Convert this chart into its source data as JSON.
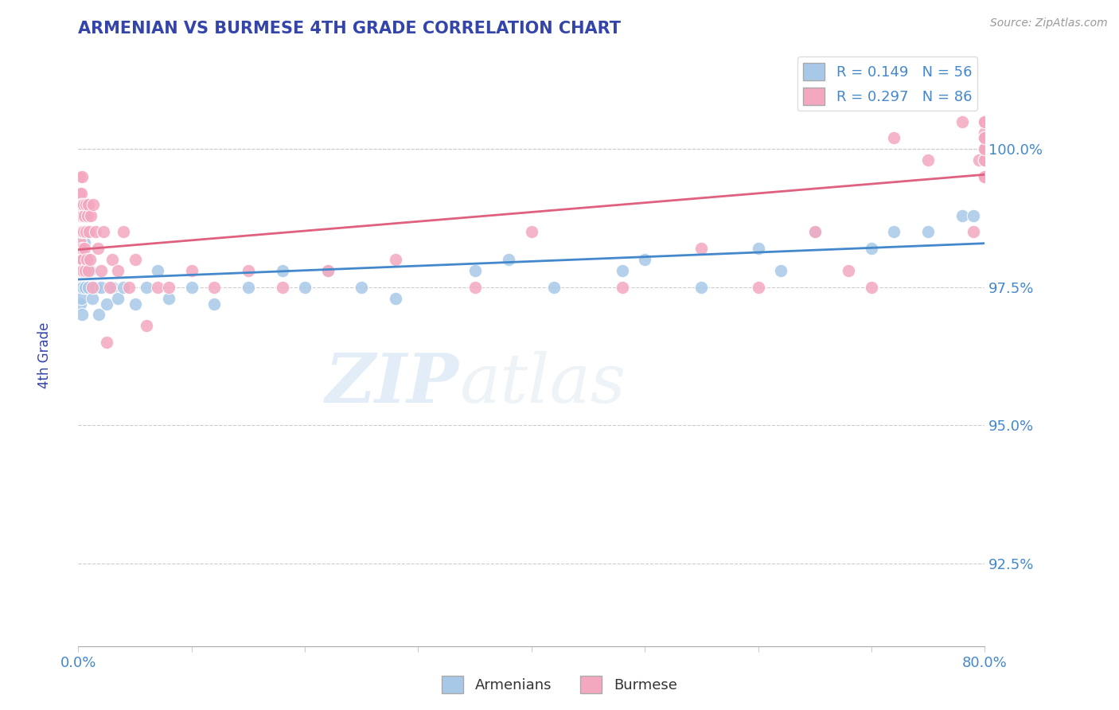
{
  "title": "ARMENIAN VS BURMESE 4TH GRADE CORRELATION CHART",
  "source_text": "Source: ZipAtlas.com",
  "ylabel": "4th Grade",
  "xlim": [
    0.0,
    80.0
  ],
  "ylim": [
    91.0,
    101.8
  ],
  "yticks": [
    92.5,
    95.0,
    97.5,
    100.0
  ],
  "blue_color": "#a8c8e8",
  "pink_color": "#f4a8c0",
  "blue_line_color": "#4488cc",
  "pink_line_color": "#e06080",
  "background_color": "#ffffff",
  "grid_color": "#cccccc",
  "title_color": "#3344aa",
  "axis_label_color": "#3344aa",
  "tick_color": "#4488cc",
  "armenians_R": 0.149,
  "armenians_N": 56,
  "burmese_R": 0.297,
  "burmese_N": 86,
  "blue_x": [
    0.05,
    0.08,
    0.1,
    0.12,
    0.15,
    0.18,
    0.2,
    0.22,
    0.25,
    0.28,
    0.3,
    0.32,
    0.35,
    0.4,
    0.45,
    0.5,
    0.55,
    0.6,
    0.7,
    0.8,
    0.9,
    1.0,
    1.2,
    1.5,
    1.8,
    2.0,
    2.5,
    3.0,
    3.5,
    4.0,
    5.0,
    6.0,
    7.0,
    8.0,
    10.0,
    12.0,
    15.0,
    18.0,
    20.0,
    22.0,
    25.0,
    28.0,
    35.0,
    38.0,
    42.0,
    48.0,
    50.0,
    55.0,
    60.0,
    62.0,
    65.0,
    70.0,
    72.0,
    75.0,
    78.0,
    79.0
  ],
  "blue_y": [
    97.5,
    98.2,
    97.8,
    99.0,
    98.5,
    97.2,
    98.8,
    97.5,
    98.0,
    97.3,
    98.5,
    97.0,
    98.2,
    97.5,
    98.0,
    97.8,
    98.3,
    97.5,
    98.0,
    97.8,
    97.5,
    97.8,
    97.3,
    97.5,
    97.0,
    97.5,
    97.2,
    97.5,
    97.3,
    97.5,
    97.2,
    97.5,
    97.8,
    97.3,
    97.5,
    97.2,
    97.5,
    97.8,
    97.5,
    97.8,
    97.5,
    97.3,
    97.8,
    98.0,
    97.5,
    97.8,
    98.0,
    97.5,
    98.2,
    97.8,
    98.5,
    98.2,
    98.5,
    98.5,
    98.8,
    98.8
  ],
  "pink_x": [
    0.05,
    0.08,
    0.1,
    0.12,
    0.13,
    0.15,
    0.17,
    0.18,
    0.2,
    0.22,
    0.23,
    0.25,
    0.27,
    0.28,
    0.3,
    0.32,
    0.33,
    0.35,
    0.38,
    0.4,
    0.42,
    0.45,
    0.48,
    0.5,
    0.55,
    0.6,
    0.65,
    0.7,
    0.75,
    0.8,
    0.85,
    0.9,
    0.95,
    1.0,
    1.1,
    1.2,
    1.3,
    1.5,
    1.7,
    2.0,
    2.2,
    2.5,
    2.8,
    3.0,
    3.5,
    4.0,
    4.5,
    5.0,
    6.0,
    7.0,
    8.0,
    10.0,
    12.0,
    15.0,
    18.0,
    22.0,
    28.0,
    35.0,
    40.0,
    48.0,
    55.0,
    60.0,
    65.0,
    68.0,
    70.0,
    72.0,
    75.0,
    78.0,
    79.0,
    79.5,
    80.0,
    80.0,
    80.0,
    80.0,
    80.0,
    80.0,
    80.0,
    80.0,
    80.0,
    80.0,
    80.0,
    80.0,
    80.0,
    80.0,
    80.0,
    80.0
  ],
  "pink_y": [
    99.0,
    98.5,
    99.2,
    98.0,
    99.5,
    98.3,
    99.0,
    97.8,
    98.8,
    99.2,
    98.5,
    98.0,
    99.0,
    97.8,
    98.5,
    99.0,
    98.2,
    99.5,
    98.0,
    98.8,
    97.8,
    99.0,
    98.5,
    98.2,
    98.8,
    97.8,
    99.0,
    98.5,
    98.0,
    98.8,
    97.8,
    99.0,
    98.5,
    98.0,
    98.8,
    97.5,
    99.0,
    98.5,
    98.2,
    97.8,
    98.5,
    96.5,
    97.5,
    98.0,
    97.8,
    98.5,
    97.5,
    98.0,
    96.8,
    97.5,
    97.5,
    97.8,
    97.5,
    97.8,
    97.5,
    97.8,
    98.0,
    97.5,
    98.5,
    97.5,
    98.2,
    97.5,
    98.5,
    97.8,
    97.5,
    100.2,
    99.8,
    100.5,
    98.5,
    99.8,
    99.5,
    100.0,
    100.2,
    99.8,
    100.5,
    100.0,
    99.5,
    100.3,
    100.0,
    99.8,
    100.5,
    100.2,
    99.8,
    100.0,
    99.5,
    100.2
  ]
}
